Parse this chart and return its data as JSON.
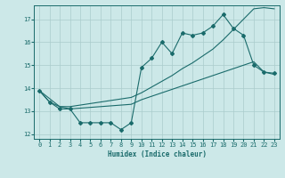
{
  "bg_color": "#cce8e8",
  "grid_color": "#aacccc",
  "line_color": "#1a6b6b",
  "xlabel": "Humidex (Indice chaleur)",
  "ylim": [
    11.8,
    17.6
  ],
  "xlim": [
    -0.5,
    23.5
  ],
  "yticks": [
    12,
    13,
    14,
    15,
    16,
    17
  ],
  "xticks": [
    0,
    1,
    2,
    3,
    4,
    5,
    6,
    7,
    8,
    9,
    10,
    11,
    12,
    13,
    14,
    15,
    16,
    17,
    18,
    19,
    20,
    21,
    22,
    23
  ],
  "series1_x": [
    0,
    1,
    2,
    3,
    4,
    5,
    6,
    7,
    8,
    9,
    10,
    11,
    12,
    13,
    14,
    15,
    16,
    17,
    18,
    19,
    20,
    21,
    22,
    23
  ],
  "series1_y": [
    13.9,
    13.4,
    13.1,
    13.1,
    12.5,
    12.5,
    12.5,
    12.5,
    12.2,
    12.5,
    14.9,
    15.3,
    16.0,
    15.5,
    16.4,
    16.3,
    16.4,
    16.7,
    17.2,
    16.6,
    16.3,
    15.0,
    14.7,
    14.65
  ],
  "series2_x": [
    0,
    2,
    3,
    9,
    10,
    11,
    12,
    13,
    14,
    15,
    16,
    17,
    18,
    19,
    20,
    21,
    22,
    23
  ],
  "series2_y": [
    13.9,
    13.2,
    13.2,
    13.6,
    13.8,
    14.05,
    14.3,
    14.55,
    14.85,
    15.1,
    15.4,
    15.7,
    16.1,
    16.55,
    17.0,
    17.45,
    17.5,
    17.45
  ],
  "series3_x": [
    0,
    1,
    2,
    3,
    9,
    10,
    11,
    12,
    13,
    14,
    15,
    16,
    17,
    18,
    19,
    20,
    21,
    22,
    23
  ],
  "series3_y": [
    13.9,
    13.4,
    13.2,
    13.1,
    13.3,
    13.5,
    13.65,
    13.8,
    13.95,
    14.1,
    14.25,
    14.4,
    14.55,
    14.7,
    14.85,
    15.0,
    15.15,
    14.7,
    14.6
  ]
}
